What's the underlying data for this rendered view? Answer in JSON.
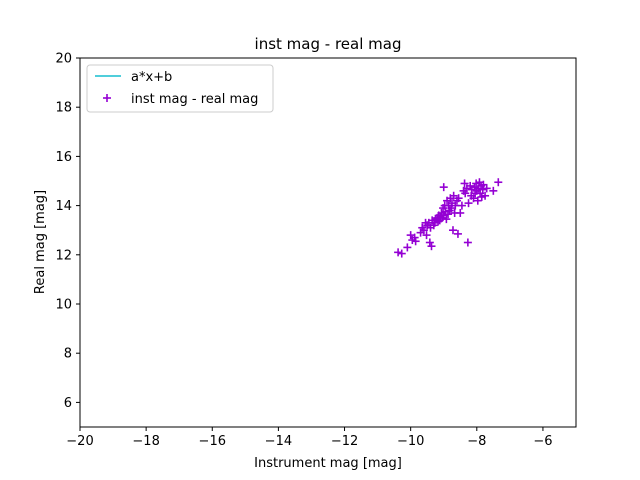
{
  "chart_data": {
    "type": "scatter",
    "title": "inst mag - real mag",
    "xlabel": "Instrument mag [mag]",
    "ylabel": "Real mag [mag]",
    "xlim": [
      -20,
      -5
    ],
    "ylim": [
      5,
      20
    ],
    "xticks": [
      -20,
      -18,
      -16,
      -14,
      -12,
      -10,
      -8,
      -6
    ],
    "yticks": [
      6,
      8,
      10,
      12,
      14,
      16,
      18,
      20
    ],
    "grid": false,
    "legend_placement": "upper-left",
    "series": [
      {
        "name": "a*x+b",
        "kind": "line",
        "color": "#17becf",
        "points": []
      },
      {
        "name": "inst mag - real mag",
        "kind": "scatter",
        "marker": "plus",
        "color": "#9400d3",
        "points": [
          [
            -10.38,
            12.1
          ],
          [
            -10.27,
            12.05
          ],
          [
            -10.1,
            12.3
          ],
          [
            -10.0,
            12.8
          ],
          [
            -9.95,
            12.6
          ],
          [
            -9.88,
            12.7
          ],
          [
            -9.85,
            12.55
          ],
          [
            -9.7,
            12.9
          ],
          [
            -9.65,
            13.1
          ],
          [
            -9.6,
            13.0
          ],
          [
            -9.55,
            13.3
          ],
          [
            -9.52,
            12.8
          ],
          [
            -9.5,
            13.2
          ],
          [
            -9.45,
            13.3
          ],
          [
            -9.42,
            12.5
          ],
          [
            -9.4,
            13.1
          ],
          [
            -9.37,
            12.35
          ],
          [
            -9.35,
            13.4
          ],
          [
            -9.3,
            13.2
          ],
          [
            -9.27,
            13.3
          ],
          [
            -9.25,
            13.45
          ],
          [
            -9.2,
            13.5
          ],
          [
            -9.17,
            13.35
          ],
          [
            -9.15,
            13.6
          ],
          [
            -9.12,
            13.4
          ],
          [
            -9.1,
            13.55
          ],
          [
            -9.07,
            13.7
          ],
          [
            -9.05,
            13.5
          ],
          [
            -9.02,
            13.9
          ],
          [
            -9.0,
            13.6
          ],
          [
            -9.0,
            14.75
          ],
          [
            -8.97,
            14.0
          ],
          [
            -8.95,
            13.75
          ],
          [
            -8.92,
            13.45
          ],
          [
            -8.9,
            14.2
          ],
          [
            -8.87,
            13.65
          ],
          [
            -8.85,
            14.0
          ],
          [
            -8.82,
            13.8
          ],
          [
            -8.8,
            14.3
          ],
          [
            -8.77,
            13.9
          ],
          [
            -8.75,
            14.1
          ],
          [
            -8.72,
            13.0
          ],
          [
            -8.7,
            14.4
          ],
          [
            -8.67,
            13.7
          ],
          [
            -8.65,
            14.0
          ],
          [
            -8.6,
            14.2
          ],
          [
            -8.57,
            12.85
          ],
          [
            -8.55,
            14.3
          ],
          [
            -8.5,
            13.7
          ],
          [
            -8.45,
            14.0
          ],
          [
            -8.4,
            14.6
          ],
          [
            -8.37,
            14.9
          ],
          [
            -8.35,
            14.5
          ],
          [
            -8.3,
            14.7
          ],
          [
            -8.27,
            12.5
          ],
          [
            -8.25,
            14.1
          ],
          [
            -8.2,
            14.8
          ],
          [
            -8.17,
            14.4
          ],
          [
            -8.15,
            14.65
          ],
          [
            -8.1,
            14.3
          ],
          [
            -8.07,
            14.75
          ],
          [
            -8.05,
            14.5
          ],
          [
            -8.02,
            14.9
          ],
          [
            -8.0,
            14.6
          ],
          [
            -7.97,
            14.2
          ],
          [
            -7.95,
            14.7
          ],
          [
            -7.92,
            14.95
          ],
          [
            -7.9,
            14.5
          ],
          [
            -7.87,
            14.8
          ],
          [
            -7.85,
            14.35
          ],
          [
            -7.82,
            14.65
          ],
          [
            -7.8,
            14.85
          ],
          [
            -7.75,
            14.4
          ],
          [
            -7.7,
            14.7
          ],
          [
            -7.5,
            14.6
          ],
          [
            -7.35,
            14.95
          ]
        ]
      }
    ]
  }
}
